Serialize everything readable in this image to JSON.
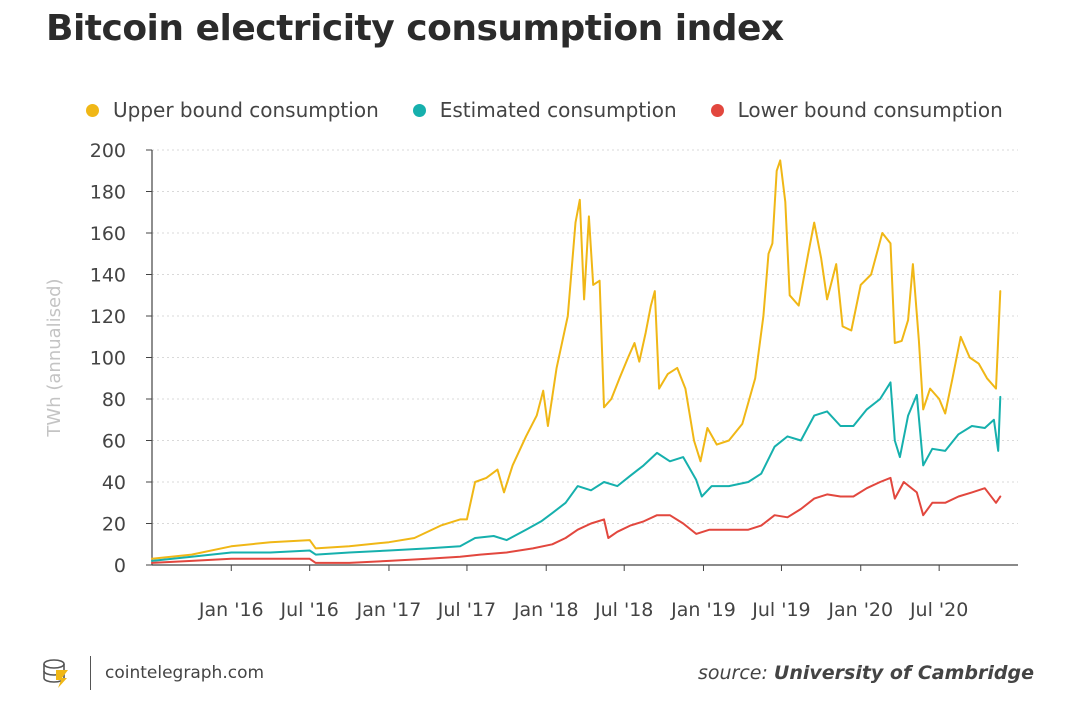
{
  "title": "Bitcoin electricity consumption index",
  "legend": [
    {
      "label": "Upper bound consumption",
      "color": "#f0b716"
    },
    {
      "label": "Estimated consumption",
      "color": "#16b0ad"
    },
    {
      "label": "Lower bound consumption",
      "color": "#e2473e"
    }
  ],
  "footer": {
    "brand": "cointelegraph.com",
    "logo_icon": "cointelegraph-coin-stack-icon",
    "source_prefix": "source:",
    "source_name": "University of Cambridge"
  },
  "chart_data": {
    "type": "line",
    "ylabel": "TWh (annualised)",
    "xlabel": "",
    "ylim": [
      0,
      200
    ],
    "yticks": [
      0,
      20,
      40,
      60,
      80,
      100,
      120,
      140,
      160,
      180,
      200
    ],
    "xlim": [
      "2015-07-01",
      "2020-12-31"
    ],
    "xtick_labels": [
      "Jan '16",
      "Jul '16",
      "Jan '17",
      "Jul '17",
      "Jan '18",
      "Jul '18",
      "Jan '19",
      "Jul '19",
      "Jan '20",
      "Jul '20"
    ],
    "xtick_dates": [
      "2016-01-01",
      "2016-07-01",
      "2017-01-01",
      "2017-07-01",
      "2018-01-01",
      "2018-07-01",
      "2019-01-01",
      "2019-07-01",
      "2020-01-01",
      "2020-07-01"
    ],
    "grid": "horizontal dotted",
    "legend_position": "top",
    "series": [
      {
        "name": "Upper bound consumption",
        "color": "#f0b716",
        "points": [
          [
            "2015-07-01",
            3
          ],
          [
            "2015-10-01",
            5
          ],
          [
            "2016-01-01",
            9
          ],
          [
            "2016-04-01",
            11
          ],
          [
            "2016-07-01",
            12
          ],
          [
            "2016-07-15",
            8
          ],
          [
            "2016-10-01",
            9
          ],
          [
            "2017-01-01",
            11
          ],
          [
            "2017-03-01",
            13
          ],
          [
            "2017-05-01",
            19
          ],
          [
            "2017-06-15",
            22
          ],
          [
            "2017-07-01",
            22
          ],
          [
            "2017-07-20",
            40
          ],
          [
            "2017-08-15",
            42
          ],
          [
            "2017-09-10",
            46
          ],
          [
            "2017-09-25",
            35
          ],
          [
            "2017-10-15",
            48
          ],
          [
            "2017-11-15",
            62
          ],
          [
            "2017-12-10",
            72
          ],
          [
            "2017-12-25",
            84
          ],
          [
            "2018-01-05",
            67
          ],
          [
            "2018-01-25",
            95
          ],
          [
            "2018-02-20",
            120
          ],
          [
            "2018-03-10",
            165
          ],
          [
            "2018-03-20",
            176
          ],
          [
            "2018-03-30",
            128
          ],
          [
            "2018-04-10",
            168
          ],
          [
            "2018-04-20",
            135
          ],
          [
            "2018-05-05",
            137
          ],
          [
            "2018-05-15",
            76
          ],
          [
            "2018-06-01",
            80
          ],
          [
            "2018-06-20",
            90
          ],
          [
            "2018-07-10",
            100
          ],
          [
            "2018-07-25",
            107
          ],
          [
            "2018-08-05",
            98
          ],
          [
            "2018-08-20",
            112
          ],
          [
            "2018-09-01",
            125
          ],
          [
            "2018-09-10",
            132
          ],
          [
            "2018-09-20",
            85
          ],
          [
            "2018-10-10",
            92
          ],
          [
            "2018-11-01",
            95
          ],
          [
            "2018-11-20",
            85
          ],
          [
            "2018-12-10",
            60
          ],
          [
            "2018-12-25",
            50
          ],
          [
            "2019-01-10",
            66
          ],
          [
            "2019-02-01",
            58
          ],
          [
            "2019-03-01",
            60
          ],
          [
            "2019-04-01",
            68
          ],
          [
            "2019-05-01",
            90
          ],
          [
            "2019-05-20",
            120
          ],
          [
            "2019-06-01",
            150
          ],
          [
            "2019-06-10",
            155
          ],
          [
            "2019-06-20",
            190
          ],
          [
            "2019-06-28",
            195
          ],
          [
            "2019-07-10",
            175
          ],
          [
            "2019-07-20",
            130
          ],
          [
            "2019-08-10",
            125
          ],
          [
            "2019-09-01",
            150
          ],
          [
            "2019-09-15",
            165
          ],
          [
            "2019-10-01",
            148
          ],
          [
            "2019-10-15",
            128
          ],
          [
            "2019-11-05",
            145
          ],
          [
            "2019-11-20",
            115
          ],
          [
            "2019-12-10",
            113
          ],
          [
            "2020-01-01",
            135
          ],
          [
            "2020-01-25",
            140
          ],
          [
            "2020-02-20",
            160
          ],
          [
            "2020-03-10",
            155
          ],
          [
            "2020-03-20",
            107
          ],
          [
            "2020-04-05",
            108
          ],
          [
            "2020-04-20",
            118
          ],
          [
            "2020-05-01",
            145
          ],
          [
            "2020-05-15",
            108
          ],
          [
            "2020-05-25",
            75
          ],
          [
            "2020-06-10",
            85
          ],
          [
            "2020-07-01",
            80
          ],
          [
            "2020-07-15",
            73
          ],
          [
            "2020-08-01",
            90
          ],
          [
            "2020-08-20",
            110
          ],
          [
            "2020-09-10",
            100
          ],
          [
            "2020-10-01",
            97
          ],
          [
            "2020-10-20",
            90
          ],
          [
            "2020-11-10",
            85
          ],
          [
            "2020-11-20",
            132
          ]
        ]
      },
      {
        "name": "Estimated consumption",
        "color": "#16b0ad",
        "points": [
          [
            "2015-07-01",
            2
          ],
          [
            "2015-10-01",
            4
          ],
          [
            "2016-01-01",
            6
          ],
          [
            "2016-04-01",
            6
          ],
          [
            "2016-07-01",
            7
          ],
          [
            "2016-07-15",
            5
          ],
          [
            "2016-10-01",
            6
          ],
          [
            "2017-01-01",
            7
          ],
          [
            "2017-04-01",
            8
          ],
          [
            "2017-06-15",
            9
          ],
          [
            "2017-07-20",
            13
          ],
          [
            "2017-09-01",
            14
          ],
          [
            "2017-10-01",
            12
          ],
          [
            "2017-11-15",
            17
          ],
          [
            "2017-12-20",
            21
          ],
          [
            "2018-01-15",
            25
          ],
          [
            "2018-02-15",
            30
          ],
          [
            "2018-03-15",
            38
          ],
          [
            "2018-04-15",
            36
          ],
          [
            "2018-05-15",
            40
          ],
          [
            "2018-06-15",
            38
          ],
          [
            "2018-07-15",
            43
          ],
          [
            "2018-08-15",
            48
          ],
          [
            "2018-09-15",
            54
          ],
          [
            "2018-10-15",
            50
          ],
          [
            "2018-11-15",
            52
          ],
          [
            "2018-12-15",
            41
          ],
          [
            "2018-12-28",
            33
          ],
          [
            "2019-01-20",
            38
          ],
          [
            "2019-03-01",
            38
          ],
          [
            "2019-04-15",
            40
          ],
          [
            "2019-05-15",
            44
          ],
          [
            "2019-06-15",
            57
          ],
          [
            "2019-07-15",
            62
          ],
          [
            "2019-08-15",
            60
          ],
          [
            "2019-09-15",
            72
          ],
          [
            "2019-10-15",
            74
          ],
          [
            "2019-11-15",
            67
          ],
          [
            "2019-12-15",
            67
          ],
          [
            "2020-01-15",
            75
          ],
          [
            "2020-02-15",
            80
          ],
          [
            "2020-03-10",
            88
          ],
          [
            "2020-03-20",
            60
          ],
          [
            "2020-04-01",
            52
          ],
          [
            "2020-04-20",
            72
          ],
          [
            "2020-05-10",
            82
          ],
          [
            "2020-05-25",
            48
          ],
          [
            "2020-06-15",
            56
          ],
          [
            "2020-07-15",
            55
          ],
          [
            "2020-08-15",
            63
          ],
          [
            "2020-09-15",
            67
          ],
          [
            "2020-10-15",
            66
          ],
          [
            "2020-11-05",
            70
          ],
          [
            "2020-11-15",
            55
          ],
          [
            "2020-11-20",
            81
          ]
        ]
      },
      {
        "name": "Lower bound consumption",
        "color": "#e2473e",
        "points": [
          [
            "2015-07-01",
            1
          ],
          [
            "2015-10-01",
            2
          ],
          [
            "2016-01-01",
            3
          ],
          [
            "2016-04-01",
            3
          ],
          [
            "2016-07-01",
            3
          ],
          [
            "2016-07-15",
            1
          ],
          [
            "2016-10-01",
            1
          ],
          [
            "2017-01-01",
            2
          ],
          [
            "2017-04-01",
            3
          ],
          [
            "2017-06-15",
            4
          ],
          [
            "2017-08-01",
            5
          ],
          [
            "2017-10-01",
            6
          ],
          [
            "2017-12-01",
            8
          ],
          [
            "2018-01-15",
            10
          ],
          [
            "2018-02-15",
            13
          ],
          [
            "2018-03-15",
            17
          ],
          [
            "2018-04-15",
            20
          ],
          [
            "2018-05-15",
            22
          ],
          [
            "2018-05-25",
            13
          ],
          [
            "2018-06-15",
            16
          ],
          [
            "2018-07-15",
            19
          ],
          [
            "2018-08-15",
            21
          ],
          [
            "2018-09-15",
            24
          ],
          [
            "2018-10-15",
            24
          ],
          [
            "2018-11-15",
            20
          ],
          [
            "2018-12-15",
            15
          ],
          [
            "2019-01-15",
            17
          ],
          [
            "2019-03-01",
            17
          ],
          [
            "2019-04-15",
            17
          ],
          [
            "2019-05-15",
            19
          ],
          [
            "2019-06-15",
            24
          ],
          [
            "2019-07-15",
            23
          ],
          [
            "2019-08-15",
            27
          ],
          [
            "2019-09-15",
            32
          ],
          [
            "2019-10-15",
            34
          ],
          [
            "2019-11-15",
            33
          ],
          [
            "2019-12-15",
            33
          ],
          [
            "2020-01-15",
            37
          ],
          [
            "2020-02-15",
            40
          ],
          [
            "2020-03-10",
            42
          ],
          [
            "2020-03-20",
            32
          ],
          [
            "2020-04-10",
            40
          ],
          [
            "2020-05-10",
            35
          ],
          [
            "2020-05-25",
            24
          ],
          [
            "2020-06-15",
            30
          ],
          [
            "2020-07-15",
            30
          ],
          [
            "2020-08-15",
            33
          ],
          [
            "2020-09-15",
            35
          ],
          [
            "2020-10-15",
            37
          ],
          [
            "2020-11-10",
            30
          ],
          [
            "2020-11-20",
            33
          ]
        ]
      }
    ]
  }
}
